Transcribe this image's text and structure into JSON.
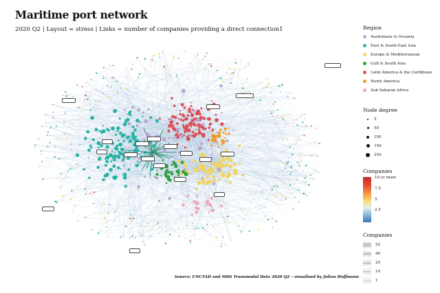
{
  "header": {
    "title": "Maritime port network",
    "subtitle": "2020 Q2 | Layout = stress | Links = number of companies providing a direct connection1"
  },
  "caption": "Source: UNCTAD and MDS Transmodal Data 2020 Q2 – visualised by Julian Hoffmann",
  "legend": {
    "region_title": "Region",
    "regions": [
      {
        "label": "Australasia & Oceania",
        "color": "#b9a6cf"
      },
      {
        "label": "East & South-East Asia",
        "color": "#27b3a5"
      },
      {
        "label": "Europe & Mediterranean",
        "color": "#f2d35b"
      },
      {
        "label": "Gulf & South Asia",
        "color": "#2e9e3f"
      },
      {
        "label": "Latin America & the Caribbean",
        "color": "#dd4e53"
      },
      {
        "label": "North America",
        "color": "#f09a26"
      },
      {
        "label": "Sub Saharan Africa",
        "color": "#f0a3b6"
      }
    ],
    "degree_title": "Node degree",
    "degrees": [
      "5",
      "50",
      "100",
      "150",
      "250"
    ],
    "companies_color_title": "Companies",
    "companies_color_ticks": [
      "10 or more",
      "7.5",
      "5",
      "2.5"
    ],
    "companies_width_title": "Companies",
    "companies_width_ticks": [
      "52",
      "40",
      "25",
      "10",
      "1"
    ]
  },
  "network": {
    "edge_color": "#a9c3de",
    "hub_edge_color": "#2a8f6f"
  }
}
